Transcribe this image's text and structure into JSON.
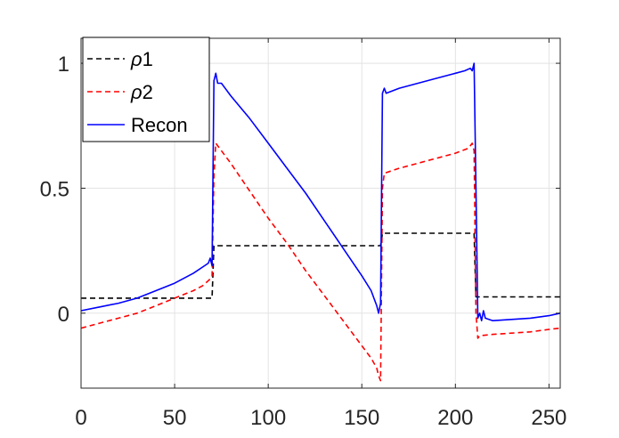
{
  "chart_data": {
    "type": "line",
    "title": "",
    "xlabel": "",
    "ylabel": "",
    "xlim": [
      0,
      256
    ],
    "ylim": [
      -0.3,
      1.1
    ],
    "grid": true,
    "legend_placement": "top-left",
    "xticks": [
      0,
      50,
      100,
      150,
      200,
      250
    ],
    "xtick_labels": [
      "0",
      "50",
      "100",
      "150",
      "200",
      "250"
    ],
    "yticks": [
      0,
      0.5,
      1
    ],
    "ytick_labels": [
      "0",
      "0.5",
      "1"
    ],
    "series": [
      {
        "name": "ρ1",
        "label_symbol": "ρ",
        "label_suffix": "1",
        "color": "#000000",
        "style": "dashed",
        "x": [
          0,
          70,
          71,
          160,
          161,
          210,
          211,
          256
        ],
        "y": [
          0.06,
          0.06,
          0.27,
          0.27,
          0.32,
          0.32,
          0.065,
          0.065
        ]
      },
      {
        "name": "ρ2",
        "label_symbol": "ρ",
        "label_suffix": "2",
        "color": "#ff0000",
        "style": "dashed",
        "x": [
          0,
          10,
          20,
          30,
          40,
          50,
          60,
          65,
          68,
          70,
          71,
          72,
          75,
          80,
          90,
          100,
          110,
          120,
          130,
          140,
          150,
          155,
          158,
          159,
          160,
          161,
          162,
          170,
          180,
          190,
          200,
          207,
          209,
          210,
          211,
          212,
          213,
          220,
          230,
          240,
          250,
          256
        ],
        "y": [
          -0.06,
          -0.04,
          -0.02,
          0.0,
          0.03,
          0.06,
          0.09,
          0.11,
          0.13,
          0.145,
          0.55,
          0.68,
          0.65,
          0.6,
          0.49,
          0.38,
          0.28,
          0.17,
          0.07,
          -0.03,
          -0.13,
          -0.18,
          -0.22,
          -0.25,
          -0.27,
          0.5,
          0.56,
          0.58,
          0.6,
          0.62,
          0.64,
          0.66,
          0.68,
          0.65,
          0.0,
          -0.1,
          -0.09,
          -0.085,
          -0.08,
          -0.075,
          -0.065,
          -0.06
        ]
      },
      {
        "name": "Recon",
        "label_symbol": "",
        "label_suffix": "Recon",
        "color": "#0000ff",
        "style": "solid",
        "x": [
          0,
          10,
          20,
          30,
          40,
          50,
          60,
          66,
          68,
          69,
          70,
          71,
          72,
          73,
          75,
          80,
          90,
          100,
          110,
          120,
          130,
          140,
          150,
          155,
          157,
          158,
          159,
          160,
          161,
          162,
          163,
          170,
          180,
          190,
          200,
          205,
          208,
          209,
          210,
          211,
          212,
          213,
          214,
          215,
          216,
          220,
          230,
          240,
          250,
          256
        ],
        "y": [
          0.01,
          0.025,
          0.04,
          0.06,
          0.09,
          0.12,
          0.16,
          0.19,
          0.2,
          0.22,
          0.19,
          0.93,
          0.96,
          0.92,
          0.92,
          0.87,
          0.78,
          0.68,
          0.58,
          0.48,
          0.37,
          0.26,
          0.15,
          0.09,
          0.05,
          0.03,
          0.0,
          0.04,
          0.88,
          0.9,
          0.88,
          0.9,
          0.92,
          0.94,
          0.96,
          0.97,
          0.98,
          0.97,
          1.0,
          0.5,
          -0.02,
          0.0,
          -0.03,
          0.01,
          -0.02,
          -0.03,
          -0.025,
          -0.02,
          -0.01,
          0.0
        ]
      }
    ]
  }
}
